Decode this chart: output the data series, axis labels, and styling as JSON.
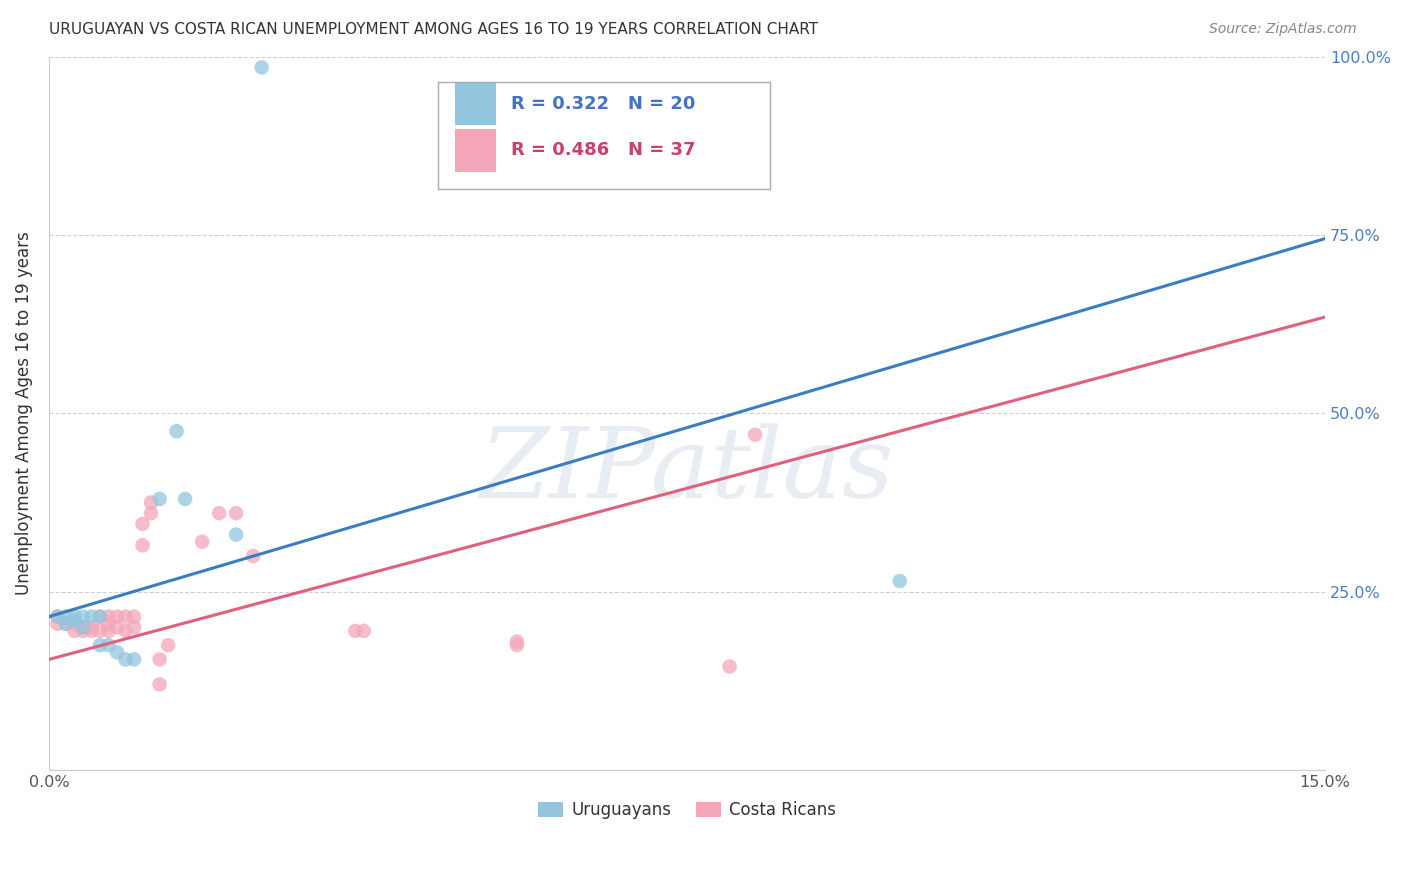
{
  "title": "URUGUAYAN VS COSTA RICAN UNEMPLOYMENT AMONG AGES 16 TO 19 YEARS CORRELATION CHART",
  "source": "Source: ZipAtlas.com",
  "ylabel": "Unemployment Among Ages 16 to 19 years",
  "xlim": [
    0.0,
    0.15
  ],
  "ylim": [
    0.0,
    1.0
  ],
  "xticks": [
    0.0,
    0.025,
    0.05,
    0.075,
    0.1,
    0.125,
    0.15
  ],
  "xtick_labels": [
    "0.0%",
    "",
    "",
    "",
    "",
    "",
    "15.0%"
  ],
  "yticks": [
    0.0,
    0.25,
    0.5,
    0.75,
    1.0
  ],
  "ytick_labels": [
    "",
    "25.0%",
    "50.0%",
    "75.0%",
    "100.0%"
  ],
  "blue_R": 0.322,
  "blue_N": 20,
  "pink_R": 0.486,
  "pink_N": 37,
  "blue_color": "#92c5de",
  "pink_color": "#f4a6b8",
  "blue_line_color": "#3a7ebf",
  "pink_line_color": "#e0607e",
  "blue_scatter": [
    [
      0.001,
      0.215
    ],
    [
      0.002,
      0.215
    ],
    [
      0.002,
      0.205
    ],
    [
      0.003,
      0.215
    ],
    [
      0.003,
      0.21
    ],
    [
      0.004,
      0.215
    ],
    [
      0.004,
      0.2
    ],
    [
      0.005,
      0.215
    ],
    [
      0.006,
      0.215
    ],
    [
      0.006,
      0.175
    ],
    [
      0.007,
      0.175
    ],
    [
      0.008,
      0.165
    ],
    [
      0.009,
      0.155
    ],
    [
      0.01,
      0.155
    ],
    [
      0.013,
      0.38
    ],
    [
      0.015,
      0.475
    ],
    [
      0.016,
      0.38
    ],
    [
      0.022,
      0.33
    ],
    [
      0.1,
      0.265
    ],
    [
      0.025,
      0.985
    ]
  ],
  "pink_scatter": [
    [
      0.001,
      0.215
    ],
    [
      0.001,
      0.205
    ],
    [
      0.002,
      0.205
    ],
    [
      0.003,
      0.205
    ],
    [
      0.003,
      0.195
    ],
    [
      0.004,
      0.2
    ],
    [
      0.004,
      0.195
    ],
    [
      0.005,
      0.2
    ],
    [
      0.005,
      0.195
    ],
    [
      0.006,
      0.195
    ],
    [
      0.006,
      0.215
    ],
    [
      0.007,
      0.215
    ],
    [
      0.007,
      0.205
    ],
    [
      0.007,
      0.195
    ],
    [
      0.008,
      0.215
    ],
    [
      0.008,
      0.2
    ],
    [
      0.009,
      0.215
    ],
    [
      0.009,
      0.195
    ],
    [
      0.01,
      0.215
    ],
    [
      0.01,
      0.2
    ],
    [
      0.011,
      0.315
    ],
    [
      0.011,
      0.345
    ],
    [
      0.012,
      0.36
    ],
    [
      0.012,
      0.375
    ],
    [
      0.013,
      0.155
    ],
    [
      0.013,
      0.12
    ],
    [
      0.014,
      0.175
    ],
    [
      0.018,
      0.32
    ],
    [
      0.02,
      0.36
    ],
    [
      0.022,
      0.36
    ],
    [
      0.024,
      0.3
    ],
    [
      0.036,
      0.195
    ],
    [
      0.037,
      0.195
    ],
    [
      0.055,
      0.175
    ],
    [
      0.055,
      0.18
    ],
    [
      0.08,
      0.145
    ],
    [
      0.083,
      0.47
    ]
  ],
  "blue_line_pts": [
    [
      0.0,
      0.215
    ],
    [
      0.15,
      0.745
    ]
  ],
  "pink_line_pts": [
    [
      0.0,
      0.155
    ],
    [
      0.15,
      0.635
    ]
  ],
  "watermark_text": "ZIPatlas",
  "background_color": "#ffffff",
  "grid_color": "#d0d0d0",
  "title_color": "#333333",
  "source_color": "#888888",
  "ylabel_color": "#333333",
  "tick_color": "#555555",
  "right_tick_color": "#4a7fc1",
  "legend_blue_text_color": "#4472c4",
  "legend_pink_text_color": "#c94070"
}
